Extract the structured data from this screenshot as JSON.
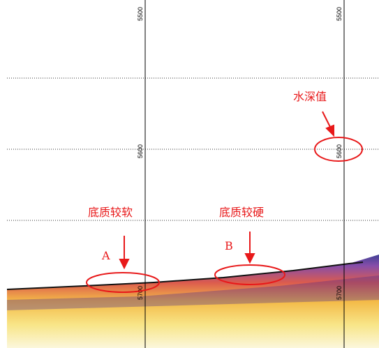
{
  "scale_left": [
    "5500",
    "5600",
    "5700"
  ],
  "scale_right": [
    "5500",
    "5600",
    "5700"
  ],
  "annotations": {
    "depth_value": "水深值",
    "soft": "底质较软",
    "hard": "底质较硬",
    "a": "A",
    "b": "B"
  }
}
